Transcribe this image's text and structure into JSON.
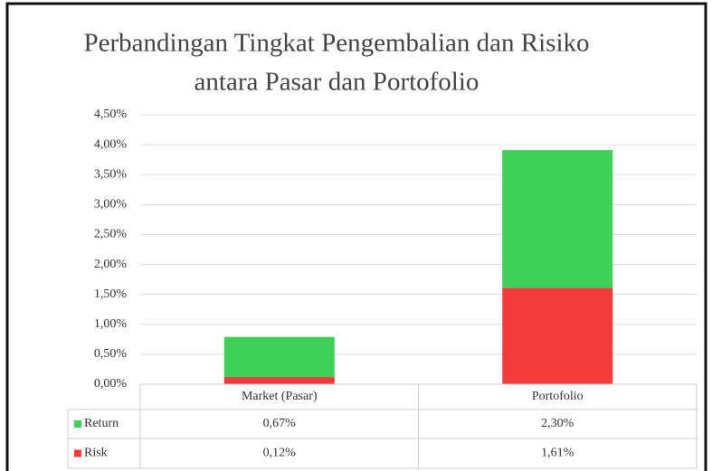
{
  "chart_data": {
    "type": "stacked_bar",
    "title": [
      "Perbandingan Tingkat Pengembalian dan Risiko",
      "antara Pasar dan Portofolio"
    ],
    "categories": [
      "Market (Pasar)",
      "Portofolio"
    ],
    "series": [
      {
        "name": "Return",
        "color": "#3fd05a",
        "values": [
          0.67,
          2.3
        ],
        "value_labels": [
          "0,67%",
          "2,30%"
        ]
      },
      {
        "name": "Risk",
        "color": "#f23b3b",
        "values": [
          0.12,
          1.61
        ],
        "value_labels": [
          "0,12%",
          "1,61%"
        ]
      }
    ],
    "ylim": [
      0,
      4.5
    ],
    "yticks": [
      {
        "value": 0,
        "label": "0,00%"
      },
      {
        "value": 0.5,
        "label": "0,50%"
      },
      {
        "value": 1,
        "label": "1,00%"
      },
      {
        "value": 1.5,
        "label": "1,50%"
      },
      {
        "value": 2,
        "label": "2,00%"
      },
      {
        "value": 2.5,
        "label": "2,50%"
      },
      {
        "value": 3,
        "label": "3,00%"
      },
      {
        "value": 3.5,
        "label": "3,50%"
      },
      {
        "value": 4,
        "label": "4,00%"
      },
      {
        "value": 4.5,
        "label": "4,50%"
      }
    ],
    "grid": true,
    "data_table": true
  }
}
